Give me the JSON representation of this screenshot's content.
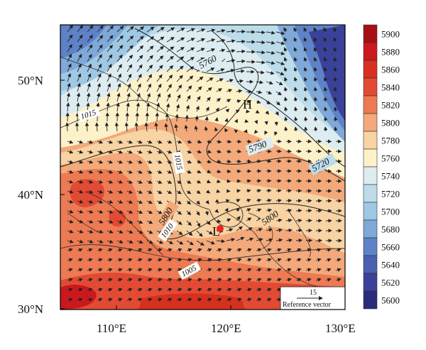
{
  "map": {
    "x_ticks": [
      "110°E",
      "120°E",
      "130°E"
    ],
    "y_ticks": [
      "50°N",
      "40°N",
      "30°N"
    ],
    "pressure_labels": [
      "1015",
      "1015",
      "1010",
      "1005"
    ],
    "height_labels": [
      "5760",
      "5790",
      "5720",
      "5800",
      "5800"
    ],
    "highs": [
      "H"
    ],
    "lows": [
      "L"
    ],
    "reference_vector": {
      "value": "15",
      "label": "Reference vector"
    },
    "marker_color": "#e8261e"
  },
  "colorbar": {
    "levels": [
      "5900",
      "5880",
      "5860",
      "5840",
      "5820",
      "5800",
      "5780",
      "5760",
      "5740",
      "5720",
      "5700",
      "5680",
      "5660",
      "5640",
      "5620",
      "5600"
    ],
    "colors": [
      "#a50f15",
      "#cb181d",
      "#d7301f",
      "#e34a33",
      "#ed7a52",
      "#f4a97a",
      "#f8d3a3",
      "#fdf1c9",
      "#ddecf0",
      "#bcdcea",
      "#9ec8e3",
      "#7ea9d8",
      "#5e82c7",
      "#4a60b0",
      "#3a4199",
      "#2a2b7a"
    ]
  }
}
